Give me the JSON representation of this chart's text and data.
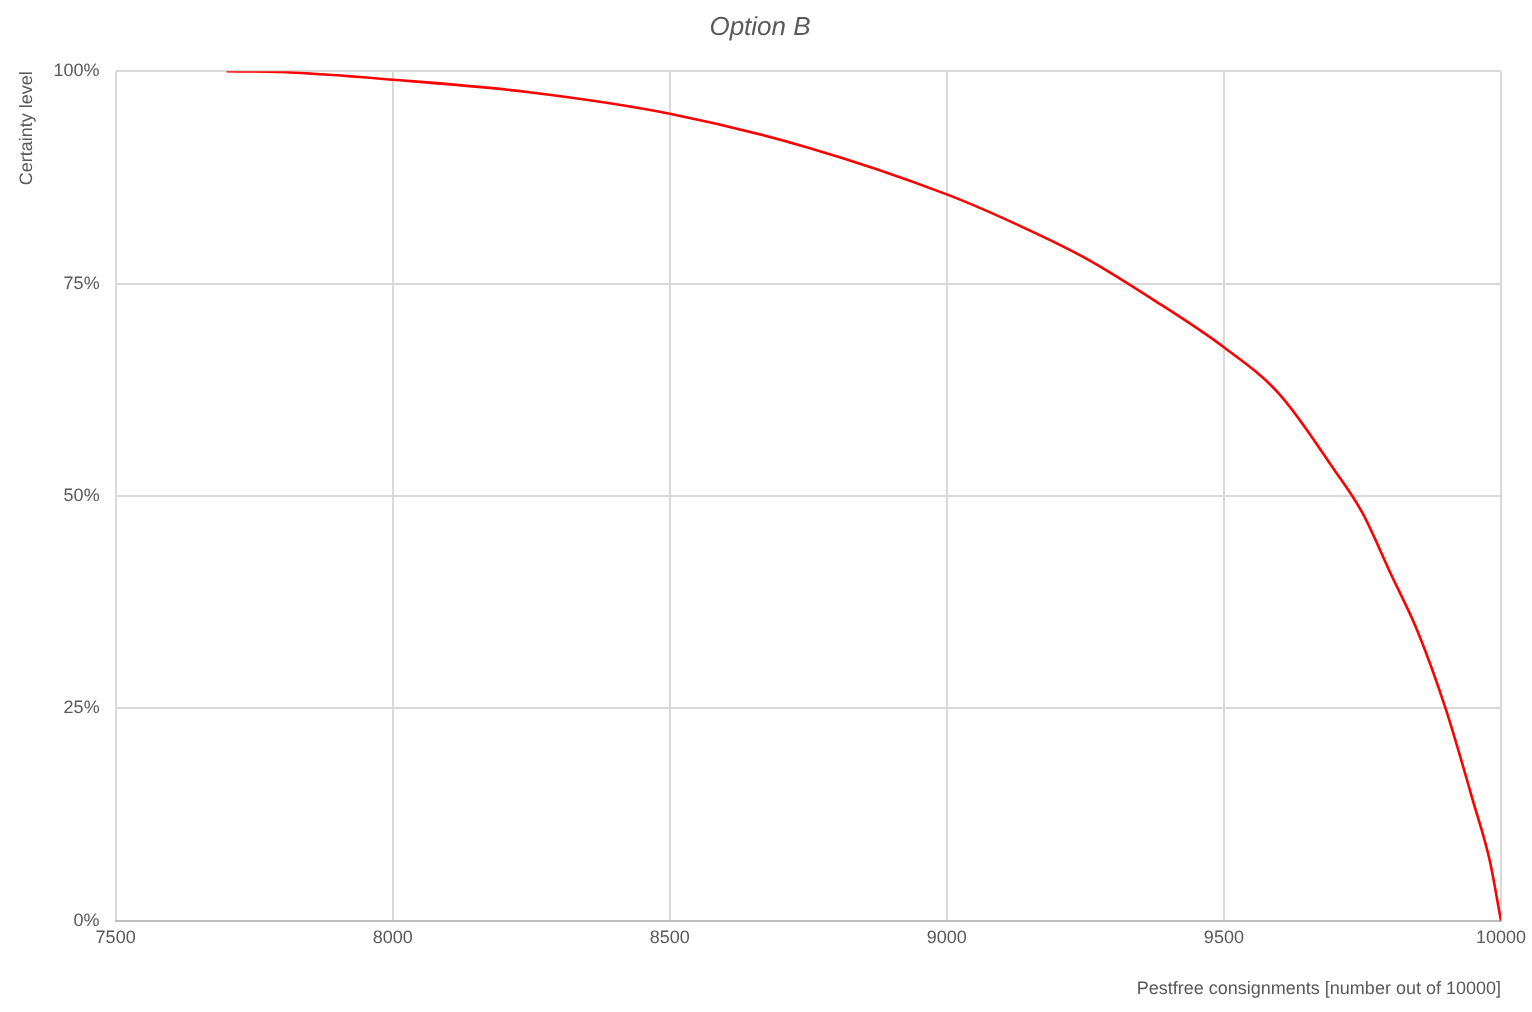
{
  "chart_data": {
    "type": "line",
    "title": "Option B",
    "xlabel": "Pestfree consignments [number out of 10000]",
    "ylabel": "Certainty level",
    "x": [
      7700,
      7800,
      8000,
      8250,
      8500,
      8750,
      9000,
      9125,
      9250,
      9375,
      9500,
      9600,
      9700,
      9750,
      9800,
      9850,
      9900,
      9950,
      9980,
      10000
    ],
    "series": [
      {
        "color": "#ff0000",
        "values": [
          100,
          99.9,
          99,
          97.5,
          95,
          91,
          85.5,
          82,
          78,
          73,
          67.5,
          62,
          53,
          48,
          41,
          34,
          25,
          14,
          7,
          0
        ]
      }
    ],
    "xlim": [
      7500,
      10000
    ],
    "xticks": [
      7500,
      8000,
      8500,
      9000,
      9500,
      10000
    ],
    "ylim": [
      0,
      100
    ],
    "yticks": [
      {
        "value": 0,
        "label": "0%"
      },
      {
        "value": 25,
        "label": "25%"
      },
      {
        "value": 50,
        "label": "50%"
      },
      {
        "value": 75,
        "label": "75%"
      },
      {
        "value": 100,
        "label": "100%"
      }
    ],
    "grid": true,
    "marker": "none",
    "line_style": "solid"
  }
}
